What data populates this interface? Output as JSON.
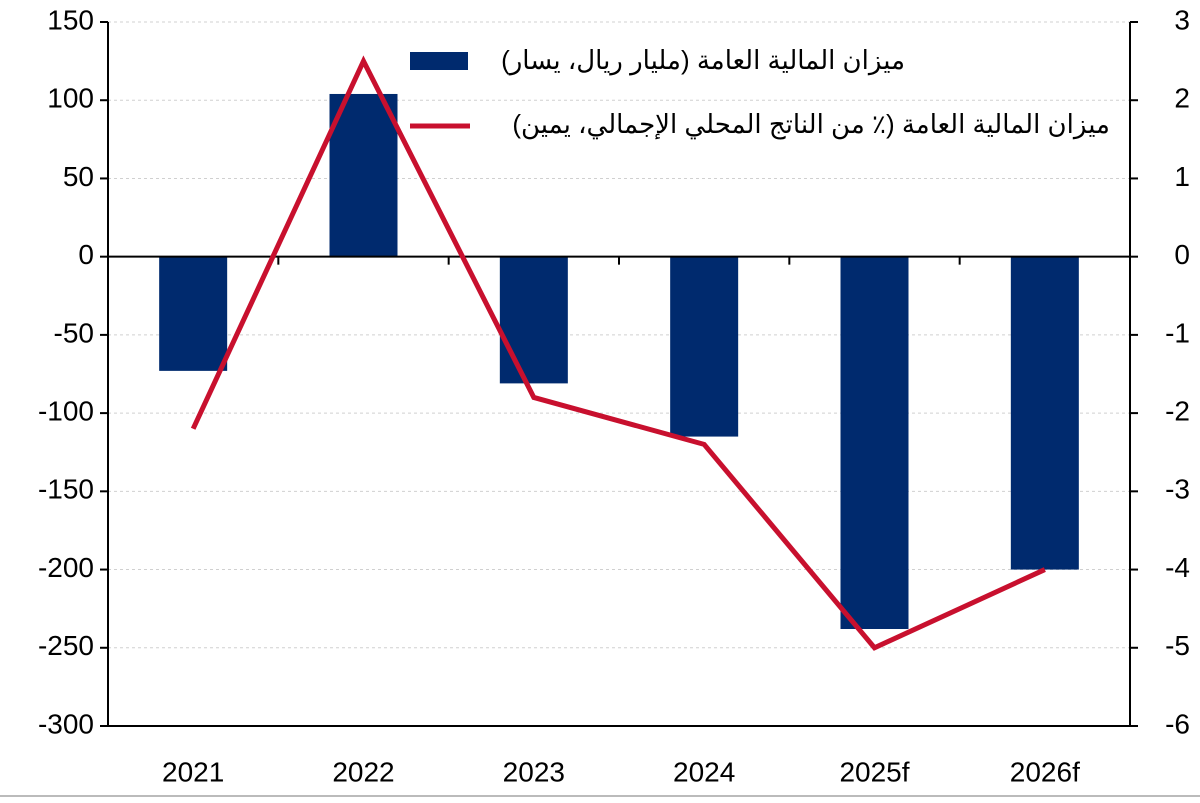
{
  "chart_data": {
    "type": "bar-line",
    "categories": [
      "2021",
      "2022",
      "2023",
      "2024",
      "2025f",
      "2026f"
    ],
    "series": [
      {
        "name": "ميزان المالية العامة (مليار ريال، يسار)",
        "type": "bar",
        "color": "#002a6e",
        "values": [
          -73,
          104,
          -81,
          -115,
          -238,
          -200
        ]
      },
      {
        "name": "ميزان المالية العامة (٪ من الناتج المحلي الإجمالي، يمين)",
        "type": "line",
        "axis": "y2",
        "color": "#c8102e",
        "values": [
          -2.2,
          2.5,
          -1.8,
          -2.4,
          -5.0,
          -4.0
        ]
      }
    ],
    "ylim": [
      -300,
      150
    ],
    "yticks": [
      -300,
      -250,
      -200,
      -150,
      -100,
      -50,
      0,
      50,
      100,
      150
    ],
    "y2lim": [
      -6,
      3
    ],
    "y2ticks": [
      -6,
      -5,
      -4,
      -3,
      -2,
      -1,
      0,
      1,
      2,
      3
    ],
    "grid": true
  }
}
